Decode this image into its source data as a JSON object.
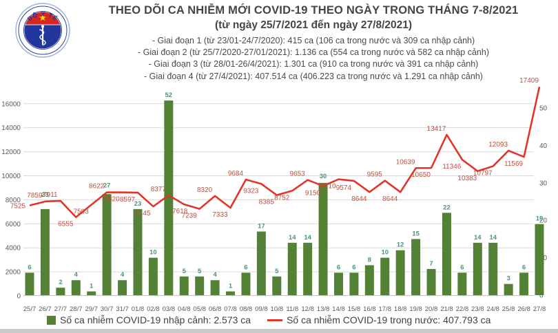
{
  "header": {
    "logo": {
      "top": "BỘ Y TẾ",
      "bottom": "MINISTRY OF HEALTH"
    },
    "title": "THEO DÕI CA NHIỄM MỚI COVID-19 THEO NGÀY TRONG THÁNG 7-8/2021",
    "subtitle": "(từ ngày 25/7/2021 đến ngày 27/8/2021)",
    "bullets": [
      "- Giai đoạn 1 (từ 23/01-24/7/2020): 415 ca (106 ca trong nước và 309 ca nhập cảnh)",
      "- Giai đoạn 2 (từ 25/7/2020-27/01/2021): 1.136 ca (554 ca trong nước và 582 ca nhập cảnh)",
      "- Giai đoạn 3 (từ 28/01-26/4/2021): 1.301 ca (910 ca trong nước và 391 ca nhập cảnh)",
      "- Giai đoạn 4 (từ 27/4/2021): 407.514 ca (406.223 ca trong nước và 1.291 ca nhập cảnh)"
    ]
  },
  "chart_data": {
    "type": "bar+line combo",
    "title": "THEO DÕI CA NHIỄM MỚI COVID-19 THEO NGÀY TRONG THÁNG 7-8/2021",
    "categories": [
      "25/7",
      "26/7",
      "27/7",
      "28/7",
      "29/7",
      "30/7",
      "31/7",
      "01/8",
      "02/8",
      "03/8",
      "04/8",
      "05/8",
      "06/8",
      "07/8",
      "08/8",
      "09/8",
      "10/8",
      "11/8",
      "12/8",
      "13/8",
      "14/8",
      "15/8",
      "16/8",
      "17/8",
      "18/8",
      "19/8",
      "20/8",
      "21/8",
      "22/8",
      "23/8",
      "24/8",
      "25/8",
      "26/8",
      "27/8"
    ],
    "series": [
      {
        "name": "Số ca nhiễm COVID-19 nhập cảnh",
        "chart": "bar",
        "axis": "right",
        "values": [
          6,
          23,
          2,
          4,
          1,
          27,
          4,
          23,
          10,
          52,
          5,
          5,
          4,
          1,
          6,
          17,
          5,
          14,
          14,
          30,
          6,
          6,
          8,
          10,
          12,
          15,
          7,
          22,
          6,
          14,
          14,
          3,
          6,
          19
        ]
      },
      {
        "name": "Số ca nhiễm COVID-19 trong nước",
        "chart": "line",
        "axis": "left",
        "values": [
          7525,
          7859,
          7911,
          6555,
          7593,
          8622,
          8620,
          8597,
          7445,
          8377,
          7618,
          7239,
          8320,
          7333,
          9684,
          9323,
          8385,
          8752,
          9653,
          9150,
          9710,
          9574,
          8644,
          9595,
          8644,
          10639,
          10650,
          13417,
          11346,
          10383,
          10797,
          12093,
          11569,
          17409
        ]
      }
    ],
    "left_axis": {
      "ticks": [
        0,
        2000,
        4000,
        6000,
        8000,
        10000,
        12000,
        14000,
        16000
      ]
    },
    "right_axis": {
      "ticks": [
        0,
        10,
        20,
        30,
        40,
        50
      ]
    },
    "grid": true,
    "legend_position": "bottom"
  },
  "legend": {
    "imported": "Số ca nhiễm COVID-19 nhập cảnh: 2.573 ca",
    "domestic": "Số ca nhiễm COVID-19 trong nước: 407.793 ca"
  },
  "colors": {
    "bar": "#538135",
    "bar_label": "#4a9478",
    "line": "#e23428",
    "line_label": "#c0503f",
    "axis_text": "#595959",
    "grid": "#d9d9d9",
    "baseline": "#bfbfbf",
    "logo_red": "#d6281e",
    "logo_blue": "#23369e",
    "star_yellow": "#f7d017"
  }
}
